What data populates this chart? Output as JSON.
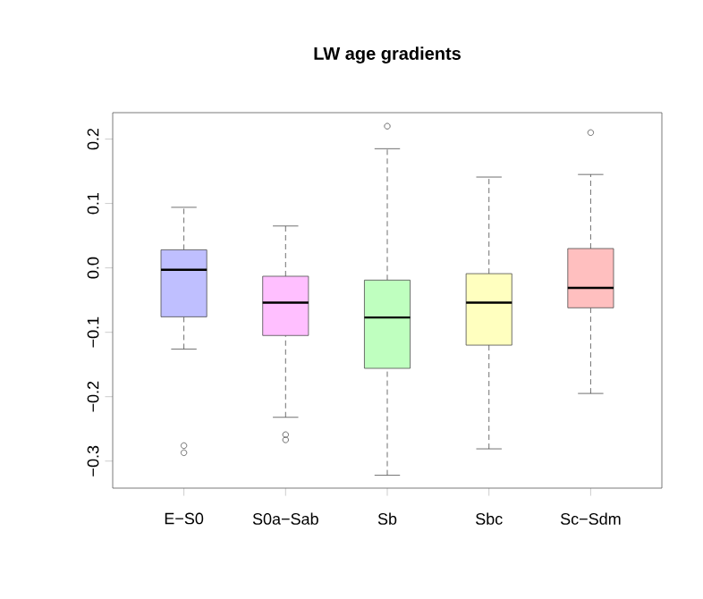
{
  "chart_data": {
    "type": "box",
    "title": "LW age gradients",
    "categories": [
      "E−S0",
      "S0a−Sab",
      "Sb",
      "Sbc",
      "Sc−Sdm"
    ],
    "colors": [
      "#bfbfff",
      "#ffbfff",
      "#bfffbf",
      "#ffffbf",
      "#ffbfbf"
    ],
    "boxes": [
      {
        "low": -0.126,
        "q1": -0.076,
        "median": -0.003,
        "q3": 0.028,
        "high": 0.094,
        "outliers": [
          -0.276,
          -0.287
        ]
      },
      {
        "low": -0.232,
        "q1": -0.105,
        "median": -0.054,
        "q3": -0.013,
        "high": 0.065,
        "outliers": [
          -0.259,
          -0.267
        ]
      },
      {
        "low": -0.322,
        "q1": -0.156,
        "median": -0.077,
        "q3": -0.019,
        "high": 0.185,
        "outliers": [
          0.22
        ]
      },
      {
        "low": -0.281,
        "q1": -0.12,
        "median": -0.054,
        "q3": -0.009,
        "high": 0.141
      },
      {
        "low": -0.195,
        "q1": -0.062,
        "median": -0.031,
        "q3": 0.03,
        "high": 0.145,
        "outliers": [
          0.21
        ]
      }
    ],
    "ylim": [
      -0.342,
      0.241
    ],
    "yticks": [
      {
        "value": -0.3,
        "label": "−0.3"
      },
      {
        "value": -0.2,
        "label": "−0.2"
      },
      {
        "value": -0.1,
        "label": "−0.1"
      },
      {
        "value": 0.0,
        "label": "0.0"
      },
      {
        "value": 0.1,
        "label": "0.1"
      },
      {
        "value": 0.2,
        "label": "0.2"
      }
    ],
    "marker": "circle"
  }
}
